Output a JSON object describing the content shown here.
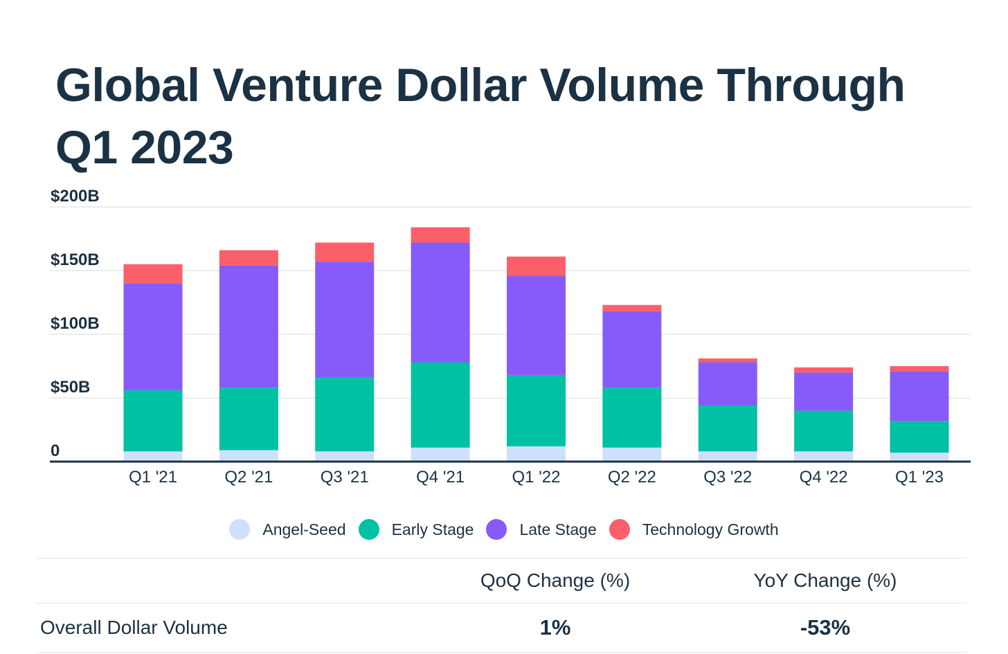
{
  "title": "Global Venture Dollar Volume Through Q1 2023",
  "chart_data": {
    "type": "bar",
    "stacked": true,
    "title": "Global Venture Dollar Volume Through Q1 2023",
    "categories": [
      "Q1 '21",
      "Q2 '21",
      "Q3 '21",
      "Q4 '21",
      "Q1 '22",
      "Q2 '22",
      "Q3 '22",
      "Q4 '22",
      "Q1 '23"
    ],
    "series": [
      {
        "name": "Angel-Seed",
        "color": "#cfe0fb",
        "values": [
          8,
          9,
          8,
          11,
          12,
          11,
          8,
          8,
          7
        ]
      },
      {
        "name": "Early Stage",
        "color": "#00c1a3",
        "values": [
          48,
          49,
          58,
          67,
          56,
          47,
          36,
          32,
          25
        ]
      },
      {
        "name": "Late Stage",
        "color": "#865bfa",
        "values": [
          84,
          96,
          91,
          94,
          78,
          60,
          34,
          30,
          39
        ]
      },
      {
        "name": "Technology Growth",
        "color": "#fb5f69",
        "values": [
          15,
          12,
          15,
          12,
          15,
          5,
          3,
          4,
          4
        ]
      }
    ],
    "yticks": [
      "0",
      "$50B",
      "$100B",
      "$150B",
      "$200B"
    ],
    "ylim": [
      0,
      200
    ],
    "xlabel": "",
    "ylabel": "",
    "grid": true,
    "legend": "bottom-center"
  },
  "table": {
    "headers": [
      "",
      "QoQ Change (%)",
      "YoY Change (%)"
    ],
    "row": {
      "label": "Overall Dollar Volume",
      "qoq": "1%",
      "yoy": "-53%"
    }
  },
  "colors": {
    "text": "#1b3144",
    "grid": "#e3e7ea",
    "axis": "#1b3144"
  }
}
